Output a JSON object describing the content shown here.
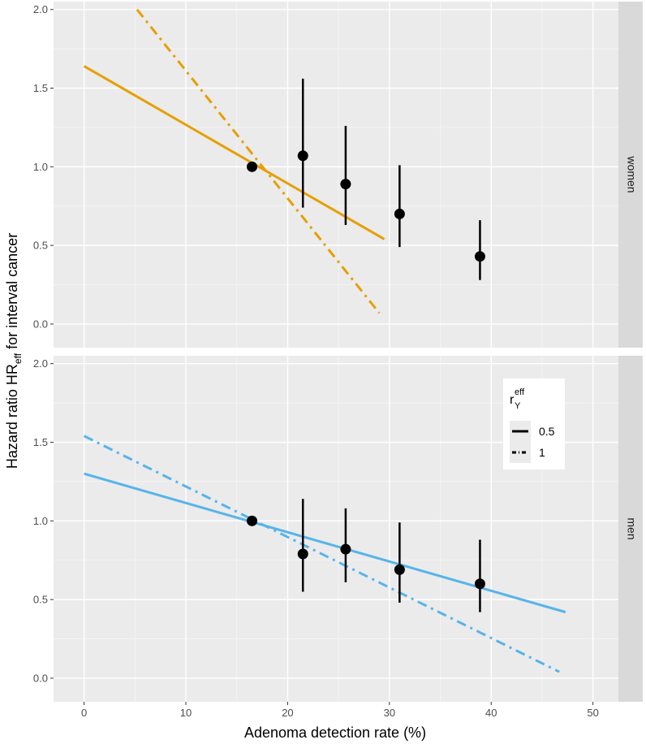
{
  "chart_data": {
    "type": "line",
    "xlabel": "Adenoma detection rate (%)",
    "ylabel": {
      "main": "Hazard ratio HR",
      "sub": "eff",
      "rest": " for interval cancer"
    },
    "xlim": [
      -3,
      52.5
    ],
    "ylim": [
      -0.15,
      2.05
    ],
    "x_ticks": [
      0,
      10,
      20,
      30,
      40,
      50
    ],
    "y_ticks": [
      0.0,
      0.5,
      1.0,
      1.5,
      2.0
    ],
    "x_tick_labels": [
      "0",
      "10",
      "20",
      "30",
      "40",
      "50"
    ],
    "y_tick_labels": [
      "0.0",
      "0.5",
      "1.0",
      "1.5",
      "2.0"
    ],
    "legend": {
      "title_main": "r",
      "title_sub": "Y",
      "title_sup": "eff",
      "entries": [
        {
          "label": "0.5",
          "style": "solid"
        },
        {
          "label": "1",
          "style": "dotdash"
        }
      ],
      "position": "right"
    },
    "panels": [
      {
        "name": "women",
        "color": "#E69F00",
        "lines": [
          {
            "r": "0.5",
            "style": "solid",
            "x": [
              0,
              29.5
            ],
            "y": [
              1.64,
              0.54
            ]
          },
          {
            "r": "1",
            "style": "dotdash",
            "x": [
              5.2,
              29.0
            ],
            "y": [
              2.0,
              0.07
            ]
          }
        ],
        "points": [
          {
            "x": 16.5,
            "y": 1.0,
            "lo": null,
            "hi": null
          },
          {
            "x": 21.5,
            "y": 1.07,
            "lo": 0.74,
            "hi": 1.56
          },
          {
            "x": 25.7,
            "y": 0.89,
            "lo": 0.63,
            "hi": 1.26
          },
          {
            "x": 31.0,
            "y": 0.7,
            "lo": 0.49,
            "hi": 1.01
          },
          {
            "x": 38.9,
            "y": 0.43,
            "lo": 0.28,
            "hi": 0.66
          }
        ]
      },
      {
        "name": "men",
        "color": "#56B4E9",
        "lines": [
          {
            "r": "0.5",
            "style": "solid",
            "x": [
              0,
              47.3
            ],
            "y": [
              1.3,
              0.42
            ]
          },
          {
            "r": "1",
            "style": "dotdash",
            "x": [
              0,
              46.7
            ],
            "y": [
              1.54,
              0.04
            ]
          }
        ],
        "points": [
          {
            "x": 16.5,
            "y": 1.0,
            "lo": null,
            "hi": null
          },
          {
            "x": 21.5,
            "y": 0.79,
            "lo": 0.55,
            "hi": 1.14
          },
          {
            "x": 25.7,
            "y": 0.82,
            "lo": 0.61,
            "hi": 1.08
          },
          {
            "x": 31.0,
            "y": 0.69,
            "lo": 0.48,
            "hi": 0.99
          },
          {
            "x": 38.9,
            "y": 0.6,
            "lo": 0.42,
            "hi": 0.88
          }
        ]
      }
    ]
  }
}
